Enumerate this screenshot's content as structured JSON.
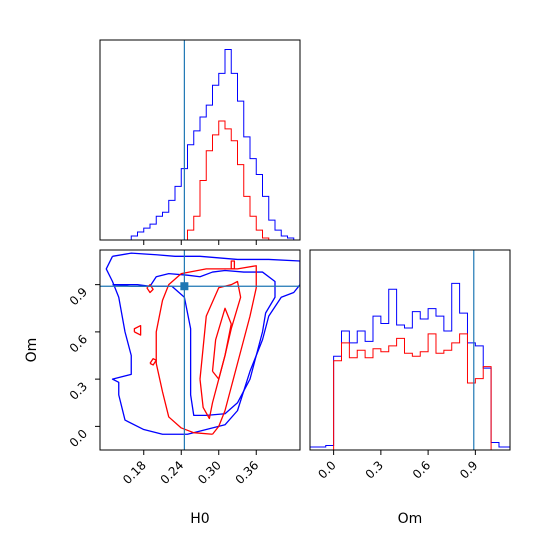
{
  "chart_data": {
    "type": "corner",
    "parameters": [
      "H0",
      "Om"
    ],
    "truths": {
      "H0": 0.245,
      "Om": 0.89
    },
    "colors": {
      "series_a": "#0000ff",
      "series_b": "#ff0000",
      "truth": "#1f77b4"
    },
    "panels": [
      {
        "id": "hist-H0",
        "type": "histogram",
        "xlim": [
          0.11,
          0.43
        ],
        "series": [
          {
            "color": "#0000ff",
            "edges": [
              0.11,
              0.12,
              0.13,
              0.14,
              0.15,
              0.16,
              0.17,
              0.18,
              0.19,
              0.2,
              0.21,
              0.22,
              0.23,
              0.24,
              0.25,
              0.26,
              0.27,
              0.28,
              0.29,
              0.3,
              0.31,
              0.32,
              0.33,
              0.34,
              0.35,
              0.36,
              0.37,
              0.38,
              0.39,
              0.4,
              0.41,
              0.42,
              0.43
            ],
            "counts": [
              0,
              0,
              0,
              0,
              0,
              0.02,
              0.04,
              0.06,
              0.08,
              0.12,
              0.14,
              0.2,
              0.27,
              0.36,
              0.48,
              0.55,
              0.62,
              0.68,
              0.78,
              0.84,
              0.96,
              0.84,
              0.7,
              0.52,
              0.41,
              0.33,
              0.22,
              0.1,
              0.05,
              0.02,
              0.01,
              0
            ]
          },
          {
            "color": "#ff0000",
            "edges": [
              0.11,
              0.12,
              0.13,
              0.14,
              0.15,
              0.16,
              0.17,
              0.18,
              0.19,
              0.2,
              0.21,
              0.22,
              0.23,
              0.24,
              0.25,
              0.26,
              0.27,
              0.28,
              0.29,
              0.3,
              0.31,
              0.32,
              0.33,
              0.34,
              0.35,
              0.36,
              0.37,
              0.38,
              0.39,
              0.4,
              0.41,
              0.42,
              0.43
            ],
            "counts": [
              0,
              0,
              0,
              0,
              0,
              0,
              0,
              0,
              0,
              0,
              0,
              0,
              0,
              0,
              0.05,
              0.12,
              0.3,
              0.45,
              0.53,
              0.6,
              0.56,
              0.5,
              0.38,
              0.22,
              0.12,
              0.05,
              0.01,
              0,
              0,
              0,
              0,
              0
            ]
          }
        ]
      },
      {
        "id": "contour-H0-Om",
        "type": "contour",
        "xlim": [
          0.11,
          0.43
        ],
        "ylim": [
          -0.15,
          1.12
        ],
        "series": [
          {
            "color": "#0000ff",
            "contours": [
              [
                [
                  0.13,
                  1.08
                ],
                [
                  0.16,
                  1.1
                ],
                [
                  0.2,
                  1.09
                ],
                [
                  0.23,
                  1.08
                ],
                [
                  0.27,
                  1.08
                ],
                [
                  0.33,
                  1.06
                ],
                [
                  0.38,
                  1.06
                ],
                [
                  0.43,
                  1.05
                ],
                [
                  0.43,
                  0.9
                ],
                [
                  0.42,
                  0.85
                ],
                [
                  0.4,
                  0.82
                ],
                [
                  0.38,
                  0.7
                ],
                [
                  0.37,
                  0.55
                ],
                [
                  0.35,
                  0.35
                ],
                [
                  0.33,
                  0.1
                ],
                [
                  0.31,
                  0.01
                ],
                [
                  0.28,
                  -0.02
                ],
                [
                  0.25,
                  -0.05
                ],
                [
                  0.21,
                  -0.05
                ],
                [
                  0.18,
                  -0.02
                ],
                [
                  0.15,
                  0.04
                ],
                [
                  0.14,
                  0.2
                ],
                [
                  0.14,
                  0.28
                ],
                [
                  0.13,
                  0.3
                ],
                [
                  0.16,
                  0.33
                ],
                [
                  0.16,
                  0.45
                ],
                [
                  0.15,
                  0.6
                ],
                [
                  0.14,
                  0.82
                ],
                [
                  0.13,
                  0.92
                ],
                [
                  0.12,
                  1.0
                ],
                [
                  0.13,
                  1.08
                ]
              ],
              [
                [
                  0.13,
                  0.9
                ],
                [
                  0.17,
                  0.9
                ],
                [
                  0.19,
                  0.89
                ],
                [
                  0.2,
                  0.95
                ],
                [
                  0.22,
                  0.97
                ],
                [
                  0.25,
                  0.96
                ],
                [
                  0.27,
                  0.95
                ],
                [
                  0.29,
                  0.98
                ],
                [
                  0.31,
                  0.99
                ],
                [
                  0.34,
                  0.98
                ],
                [
                  0.37,
                  0.98
                ],
                [
                  0.39,
                  0.92
                ],
                [
                  0.39,
                  0.82
                ],
                [
                  0.375,
                  0.72
                ],
                [
                  0.37,
                  0.6
                ],
                [
                  0.36,
                  0.45
                ],
                [
                  0.35,
                  0.3
                ],
                [
                  0.33,
                  0.15
                ],
                [
                  0.31,
                  0.08
                ],
                [
                  0.28,
                  0.07
                ],
                [
                  0.26,
                  0.07
                ],
                [
                  0.255,
                  0.2
                ],
                [
                  0.255,
                  0.4
                ],
                [
                  0.255,
                  0.62
                ],
                [
                  0.245,
                  0.82
                ],
                [
                  0.225,
                  0.89
                ],
                [
                  0.19,
                  0.89
                ],
                [
                  0.16,
                  0.89
                ],
                [
                  0.13,
                  0.9
                ]
              ]
            ]
          },
          {
            "color": "#ff0000",
            "contours": [
              [
                [
                  0.29,
                  -0.05
                ],
                [
                  0.26,
                  -0.04
                ],
                [
                  0.24,
                  -0.01
                ],
                [
                  0.22,
                  0.06
                ],
                [
                  0.21,
                  0.22
                ],
                [
                  0.2,
                  0.4
                ],
                [
                  0.2,
                  0.6
                ],
                [
                  0.21,
                  0.8
                ],
                [
                  0.22,
                  0.9
                ],
                [
                  0.24,
                  0.97
                ],
                [
                  0.28,
                  1.0
                ],
                [
                  0.33,
                  1.0
                ],
                [
                  0.36,
                  1.02
                ],
                [
                  0.36,
                  0.88
                ],
                [
                  0.35,
                  0.7
                ],
                [
                  0.34,
                  0.55
                ],
                [
                  0.33,
                  0.4
                ],
                [
                  0.32,
                  0.25
                ],
                [
                  0.31,
                  0.1
                ],
                [
                  0.3,
                  0.0
                ],
                [
                  0.29,
                  -0.05
                ]
              ],
              [
                [
                  0.27,
                  0.3
                ],
                [
                  0.275,
                  0.5
                ],
                [
                  0.28,
                  0.7
                ],
                [
                  0.3,
                  0.88
                ],
                [
                  0.32,
                  0.9
                ],
                [
                  0.33,
                  0.92
                ],
                [
                  0.335,
                  0.82
                ],
                [
                  0.32,
                  0.62
                ],
                [
                  0.31,
                  0.45
                ],
                [
                  0.3,
                  0.3
                ],
                [
                  0.29,
                  0.15
                ],
                [
                  0.285,
                  0.05
                ],
                [
                  0.275,
                  0.12
                ],
                [
                  0.27,
                  0.3
                ]
              ],
              [
                [
                  0.29,
                  0.35
                ],
                [
                  0.295,
                  0.55
                ],
                [
                  0.31,
                  0.75
                ],
                [
                  0.32,
                  0.65
                ],
                [
                  0.31,
                  0.45
                ],
                [
                  0.3,
                  0.3
                ],
                [
                  0.29,
                  0.35
                ]
              ],
              [
                [
                  0.165,
                  0.6
                ],
                [
                  0.175,
                  0.58
                ],
                [
                  0.175,
                  0.64
                ],
                [
                  0.165,
                  0.62
                ],
                [
                  0.165,
                  0.6
                ]
              ],
              [
                [
                  0.32,
                  1.0
                ],
                [
                  0.32,
                  1.05
                ],
                [
                  0.325,
                  1.05
                ],
                [
                  0.325,
                  1.0
                ],
                [
                  0.32,
                  1.0
                ]
              ],
              [
                [
                  0.185,
                  0.88
                ],
                [
                  0.19,
                  0.85
                ],
                [
                  0.195,
                  0.87
                ],
                [
                  0.19,
                  0.9
                ],
                [
                  0.185,
                  0.88
                ]
              ],
              [
                [
                  0.19,
                  0.4
                ],
                [
                  0.195,
                  0.43
                ],
                [
                  0.2,
                  0.42
                ],
                [
                  0.195,
                  0.39
                ],
                [
                  0.19,
                  0.4
                ]
              ]
            ]
          }
        ]
      },
      {
        "id": "hist-Om",
        "type": "histogram",
        "xlim": [
          -0.15,
          1.12
        ],
        "series": [
          {
            "color": "#0000ff",
            "edges": [
              -0.15,
              -0.1,
              -0.05,
              0.0,
              0.05,
              0.1,
              0.15,
              0.2,
              0.25,
              0.3,
              0.35,
              0.4,
              0.45,
              0.5,
              0.55,
              0.6,
              0.65,
              0.7,
              0.75,
              0.8,
              0.85,
              0.9,
              0.95,
              1.0,
              1.05,
              1.12
            ],
            "counts": [
              0.02,
              0.02,
              0.03,
              0.63,
              0.8,
              0.72,
              0.8,
              0.73,
              0.9,
              0.85,
              1.08,
              0.84,
              0.82,
              0.93,
              0.88,
              0.95,
              0.9,
              0.8,
              1.12,
              0.92,
              0.72,
              0.7,
              0.55,
              0.05,
              0.02
            ]
          },
          {
            "color": "#ff0000",
            "edges": [
              -0.15,
              -0.1,
              -0.05,
              0.0,
              0.05,
              0.1,
              0.15,
              0.2,
              0.25,
              0.3,
              0.35,
              0.4,
              0.45,
              0.5,
              0.55,
              0.6,
              0.65,
              0.7,
              0.75,
              0.8,
              0.85,
              0.9,
              0.95,
              1.0,
              1.05,
              1.12
            ],
            "counts": [
              0,
              0,
              0,
              0.6,
              0.72,
              0.62,
              0.67,
              0.62,
              0.68,
              0.66,
              0.7,
              0.75,
              0.65,
              0.63,
              0.66,
              0.78,
              0.65,
              0.67,
              0.72,
              0.78,
              0.45,
              0.48,
              0.56,
              0,
              0
            ]
          }
        ]
      }
    ],
    "axes": {
      "H0": {
        "label": "H0",
        "ticks": [
          0.18,
          0.24,
          0.3,
          0.36
        ],
        "tick_labels": [
          "0.18",
          "0.24",
          "0.30",
          "0.36"
        ]
      },
      "Om": {
        "label": "Om",
        "ticks": [
          0.0,
          0.3,
          0.6,
          0.9
        ],
        "tick_labels": [
          "0.0",
          "0.3",
          "0.6",
          "0.9"
        ]
      }
    }
  }
}
